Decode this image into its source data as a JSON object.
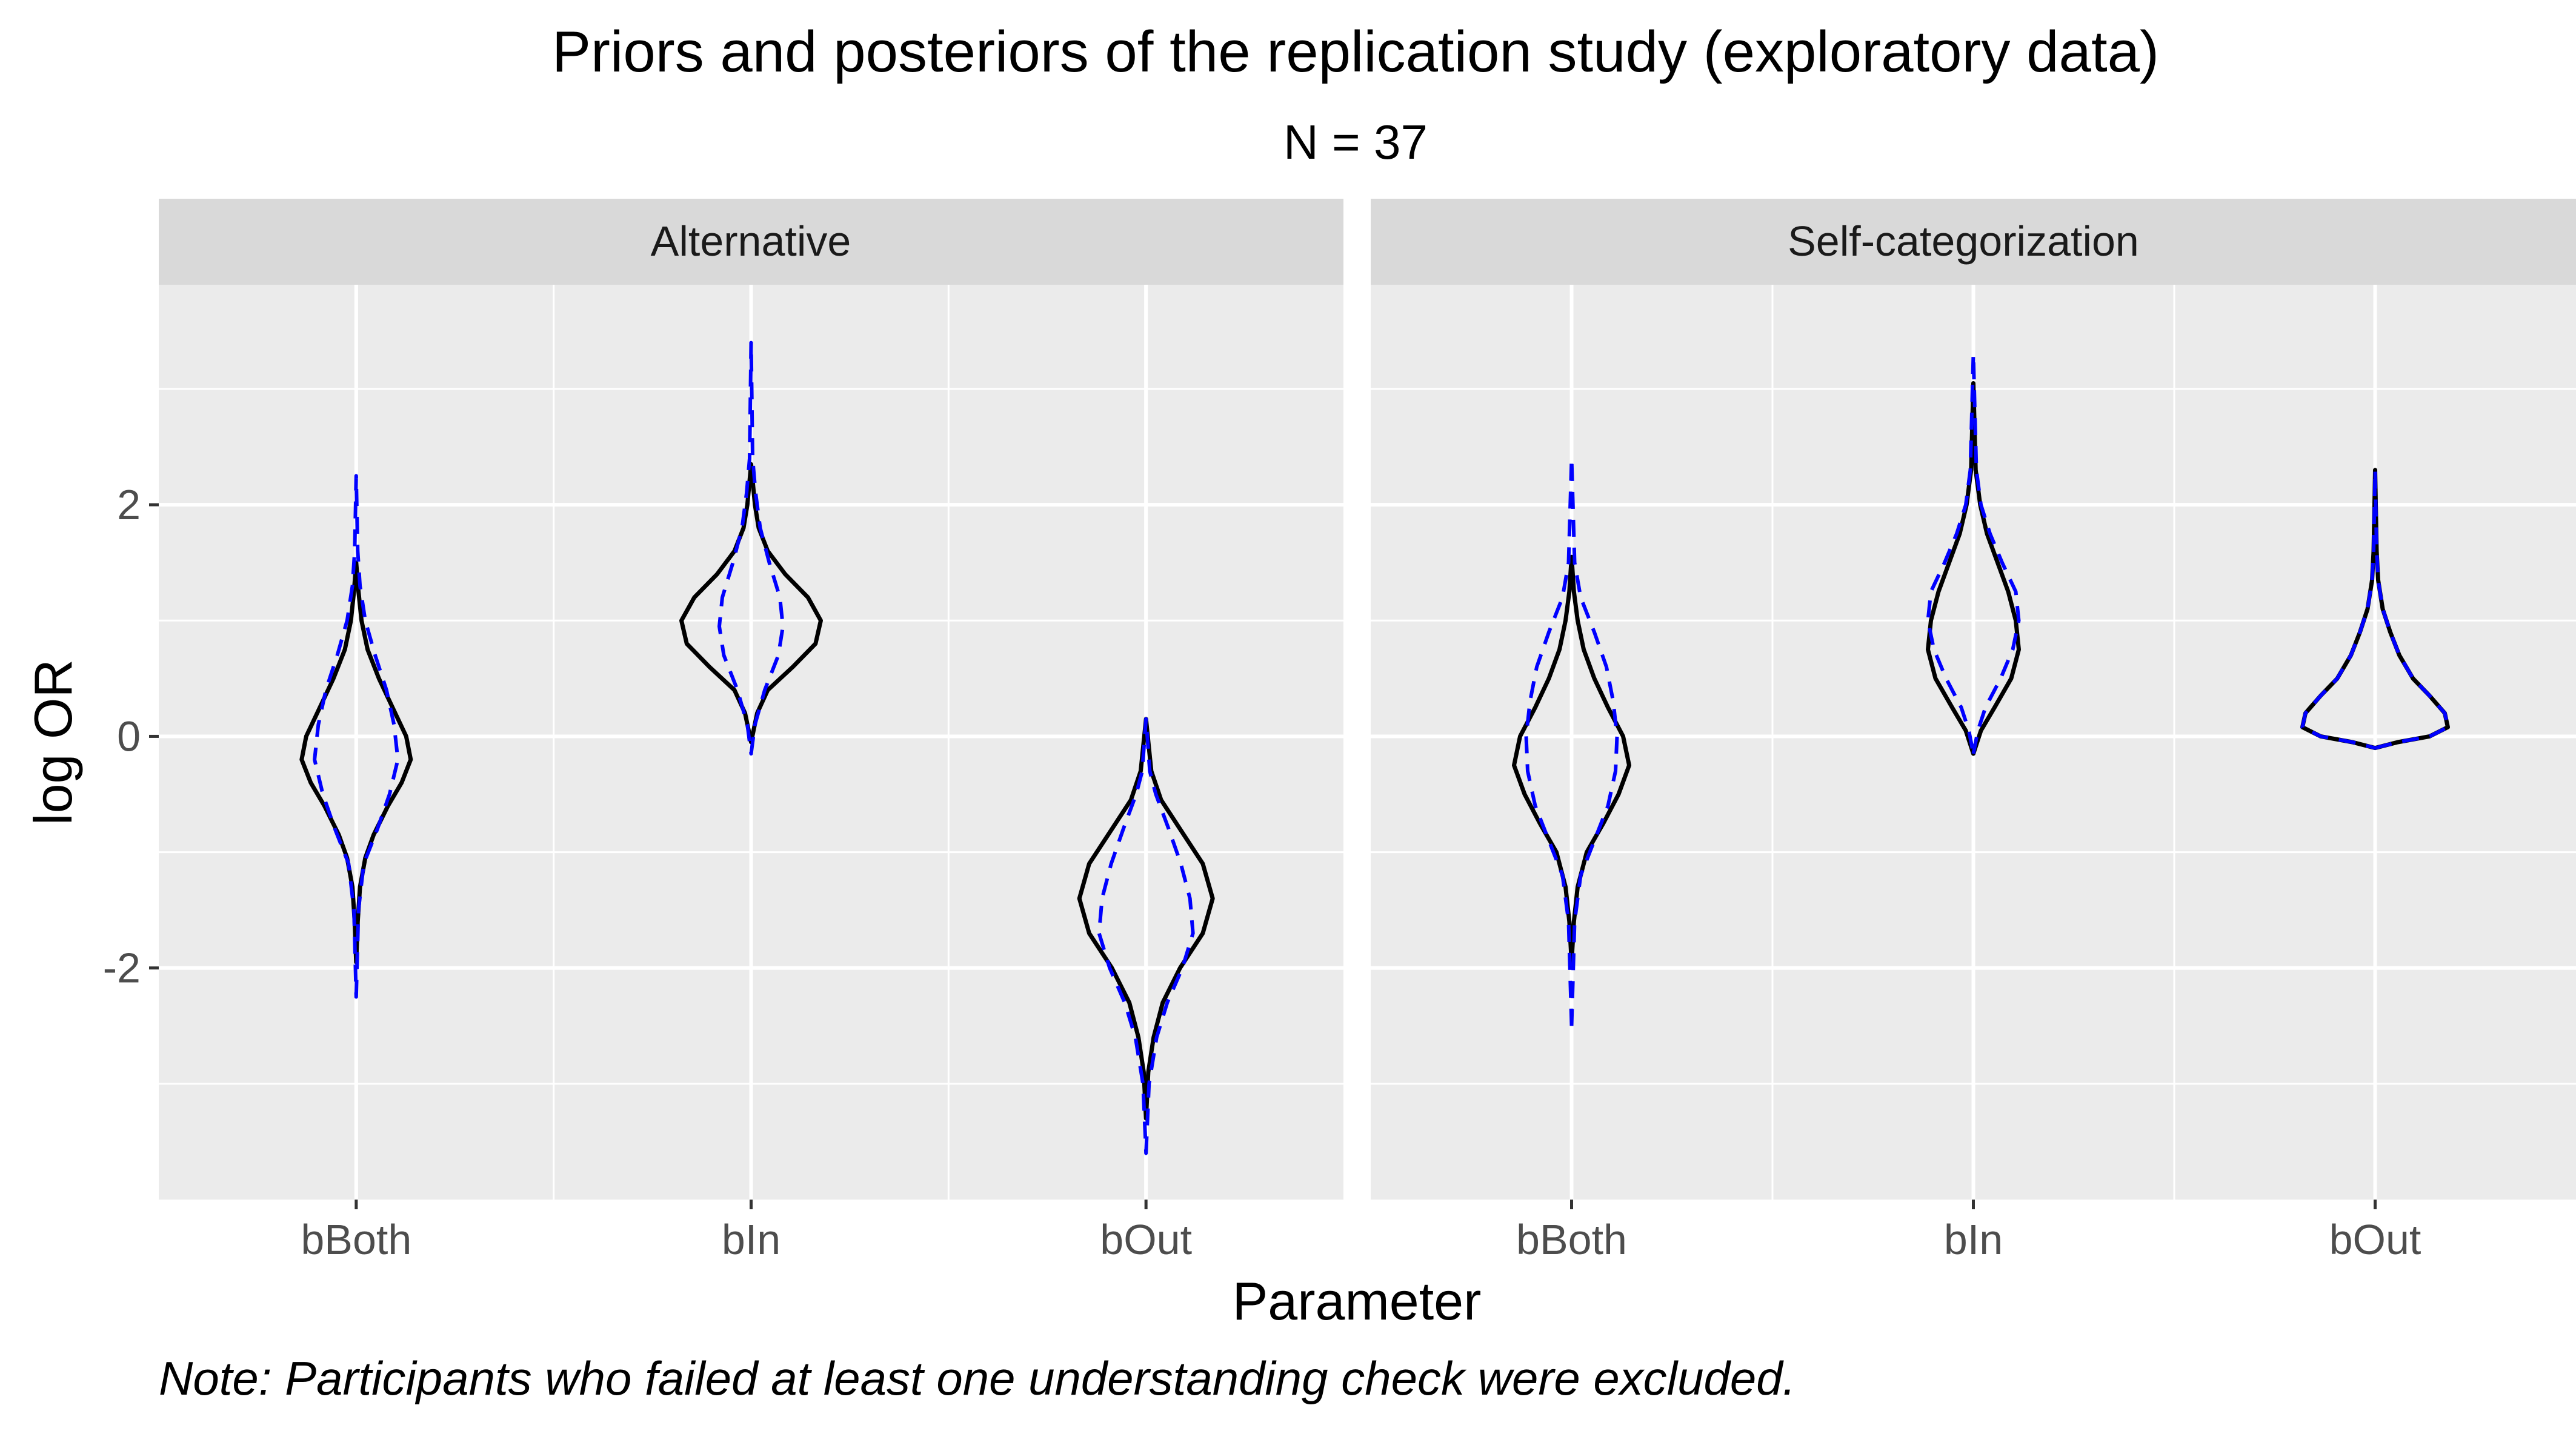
{
  "chart_data": {
    "type": "violin",
    "title": "Priors and posteriors of the replication study (exploratory data)",
    "subtitle": "N = 37",
    "xlabel": "Parameter",
    "ylabel": "log OR",
    "caption": "Note: Participants who failed at least one understanding check were excluded.",
    "ylim": [
      -4.0,
      3.9
    ],
    "y_ticks": [
      -2,
      0,
      2
    ],
    "y_tick_labels": [
      "-2",
      "0",
      "2"
    ],
    "categories": [
      "bBoth",
      "bIn",
      "bOut"
    ],
    "grid": true,
    "line_styles": {
      "solid": {
        "color": "#000000"
      },
      "dashed": {
        "color": "#0000ff"
      }
    },
    "panels": [
      {
        "label": "Alternative",
        "violins": [
          {
            "parameter": "bBoth",
            "solid": {
              "min": -1.95,
              "max": 1.5,
              "profile": [
                [
                  -1.95,
                  0
                ],
                [
                  -1.6,
                  0.02
                ],
                [
                  -1.3,
                  0.05
                ],
                [
                  -1.05,
                  0.12
                ],
                [
                  -0.85,
                  0.23
                ],
                [
                  -0.6,
                  0.42
                ],
                [
                  -0.4,
                  0.6
                ],
                [
                  -0.2,
                  0.72
                ],
                [
                  0,
                  0.66
                ],
                [
                  0.25,
                  0.48
                ],
                [
                  0.5,
                  0.3
                ],
                [
                  0.75,
                  0.15
                ],
                [
                  1.0,
                  0.07
                ],
                [
                  1.25,
                  0.03
                ],
                [
                  1.5,
                  0
                ]
              ]
            },
            "dashed": {
              "min": -2.25,
              "max": 2.25,
              "profile": [
                [
                  -2.25,
                  0
                ],
                [
                  -1.5,
                  0.03
                ],
                [
                  -1.1,
                  0.1
                ],
                [
                  -0.8,
                  0.28
                ],
                [
                  -0.5,
                  0.44
                ],
                [
                  -0.2,
                  0.55
                ],
                [
                  0.1,
                  0.5
                ],
                [
                  0.4,
                  0.4
                ],
                [
                  0.7,
                  0.25
                ],
                [
                  1.0,
                  0.12
                ],
                [
                  1.3,
                  0.05
                ],
                [
                  1.6,
                  0.02
                ],
                [
                  2.25,
                  0
                ]
              ]
            }
          },
          {
            "parameter": "bIn",
            "solid": {
              "min": -0.05,
              "max": 2.35,
              "profile": [
                [
                  -0.05,
                  0
                ],
                [
                  0.2,
                  0.08
                ],
                [
                  0.4,
                  0.22
                ],
                [
                  0.6,
                  0.55
                ],
                [
                  0.8,
                  0.85
                ],
                [
                  1.0,
                  0.92
                ],
                [
                  1.2,
                  0.75
                ],
                [
                  1.4,
                  0.45
                ],
                [
                  1.6,
                  0.22
                ],
                [
                  1.8,
                  0.1
                ],
                [
                  2.0,
                  0.05
                ],
                [
                  2.35,
                  0
                ]
              ]
            },
            "dashed": {
              "min": -0.15,
              "max": 3.4,
              "profile": [
                [
                  -0.15,
                  0
                ],
                [
                  0.1,
                  0.05
                ],
                [
                  0.4,
                  0.18
                ],
                [
                  0.7,
                  0.36
                ],
                [
                  0.95,
                  0.42
                ],
                [
                  1.2,
                  0.38
                ],
                [
                  1.5,
                  0.24
                ],
                [
                  1.8,
                  0.12
                ],
                [
                  2.1,
                  0.06
                ],
                [
                  2.4,
                  0.02
                ],
                [
                  3.4,
                  0
                ]
              ]
            }
          },
          {
            "parameter": "bOut",
            "solid": {
              "min": -3.3,
              "max": 0.15,
              "profile": [
                [
                  -3.3,
                  0
                ],
                [
                  -2.9,
                  0.03
                ],
                [
                  -2.6,
                  0.1
                ],
                [
                  -2.3,
                  0.22
                ],
                [
                  -2.0,
                  0.45
                ],
                [
                  -1.7,
                  0.75
                ],
                [
                  -1.4,
                  0.88
                ],
                [
                  -1.1,
                  0.75
                ],
                [
                  -0.8,
                  0.45
                ],
                [
                  -0.55,
                  0.2
                ],
                [
                  -0.3,
                  0.07
                ],
                [
                  0.15,
                  0
                ]
              ]
            },
            "dashed": {
              "min": -3.6,
              "max": 0.15,
              "profile": [
                [
                  -3.6,
                  0
                ],
                [
                  -3.0,
                  0.04
                ],
                [
                  -2.6,
                  0.14
                ],
                [
                  -2.3,
                  0.28
                ],
                [
                  -2.0,
                  0.48
                ],
                [
                  -1.7,
                  0.62
                ],
                [
                  -1.4,
                  0.58
                ],
                [
                  -1.1,
                  0.46
                ],
                [
                  -0.8,
                  0.3
                ],
                [
                  -0.5,
                  0.13
                ],
                [
                  -0.3,
                  0.05
                ],
                [
                  0.15,
                  0
                ]
              ]
            }
          }
        ]
      },
      {
        "label": "Self-categorization",
        "violins": [
          {
            "parameter": "bBoth",
            "solid": {
              "min": -1.95,
              "max": 1.55,
              "profile": [
                [
                  -1.95,
                  0
                ],
                [
                  -1.6,
                  0.03
                ],
                [
                  -1.3,
                  0.08
                ],
                [
                  -1.0,
                  0.2
                ],
                [
                  -0.75,
                  0.42
                ],
                [
                  -0.5,
                  0.62
                ],
                [
                  -0.25,
                  0.76
                ],
                [
                  0,
                  0.68
                ],
                [
                  0.25,
                  0.48
                ],
                [
                  0.5,
                  0.3
                ],
                [
                  0.75,
                  0.16
                ],
                [
                  1.0,
                  0.08
                ],
                [
                  1.25,
                  0.03
                ],
                [
                  1.55,
                  0
                ]
              ]
            },
            "dashed": {
              "min": -2.5,
              "max": 2.4,
              "profile": [
                [
                  -2.5,
                  0
                ],
                [
                  -1.6,
                  0.04
                ],
                [
                  -1.2,
                  0.12
                ],
                [
                  -0.9,
                  0.3
                ],
                [
                  -0.6,
                  0.48
                ],
                [
                  -0.3,
                  0.58
                ],
                [
                  0,
                  0.6
                ],
                [
                  0.3,
                  0.55
                ],
                [
                  0.6,
                  0.46
                ],
                [
                  0.9,
                  0.3
                ],
                [
                  1.2,
                  0.12
                ],
                [
                  1.5,
                  0.04
                ],
                [
                  2.4,
                  0
                ]
              ]
            }
          },
          {
            "parameter": "bIn",
            "solid": {
              "min": -0.15,
              "max": 3.05,
              "profile": [
                [
                  -0.15,
                  0
                ],
                [
                  0.05,
                  0.1
                ],
                [
                  0.25,
                  0.28
                ],
                [
                  0.5,
                  0.5
                ],
                [
                  0.75,
                  0.6
                ],
                [
                  1.0,
                  0.56
                ],
                [
                  1.25,
                  0.46
                ],
                [
                  1.5,
                  0.32
                ],
                [
                  1.75,
                  0.18
                ],
                [
                  2.0,
                  0.09
                ],
                [
                  2.3,
                  0.03
                ],
                [
                  3.05,
                  0
                ]
              ]
            },
            "dashed": {
              "min": -0.15,
              "max": 3.3,
              "profile": [
                [
                  -0.15,
                  0
                ],
                [
                  0.05,
                  0.06
                ],
                [
                  0.25,
                  0.16
                ],
                [
                  0.5,
                  0.36
                ],
                [
                  0.75,
                  0.52
                ],
                [
                  1.0,
                  0.6
                ],
                [
                  1.25,
                  0.56
                ],
                [
                  1.5,
                  0.38
                ],
                [
                  1.75,
                  0.22
                ],
                [
                  2.0,
                  0.1
                ],
                [
                  2.3,
                  0.04
                ],
                [
                  3.3,
                  0
                ]
              ]
            }
          },
          {
            "parameter": "bOut",
            "solid": {
              "min": -0.1,
              "max": 2.3,
              "profile": [
                [
                  -0.1,
                  0
                ],
                [
                  -0.05,
                  0.3
                ],
                [
                  0.0,
                  0.72
                ],
                [
                  0.08,
                  0.96
                ],
                [
                  0.2,
                  0.92
                ],
                [
                  0.35,
                  0.72
                ],
                [
                  0.5,
                  0.5
                ],
                [
                  0.7,
                  0.32
                ],
                [
                  0.9,
                  0.2
                ],
                [
                  1.1,
                  0.1
                ],
                [
                  1.35,
                  0.04
                ],
                [
                  1.6,
                  0.02
                ],
                [
                  2.3,
                  0
                ]
              ]
            },
            "dashed": {
              "min": -0.1,
              "max": 2.3,
              "profile": [
                [
                  -0.1,
                  0
                ],
                [
                  -0.05,
                  0.3
                ],
                [
                  0.0,
                  0.72
                ],
                [
                  0.08,
                  0.96
                ],
                [
                  0.2,
                  0.92
                ],
                [
                  0.35,
                  0.72
                ],
                [
                  0.5,
                  0.5
                ],
                [
                  0.7,
                  0.32
                ],
                [
                  0.9,
                  0.2
                ],
                [
                  1.1,
                  0.1
                ],
                [
                  1.35,
                  0.04
                ],
                [
                  1.6,
                  0.02
                ],
                [
                  2.3,
                  0
                ]
              ]
            }
          }
        ]
      }
    ]
  }
}
